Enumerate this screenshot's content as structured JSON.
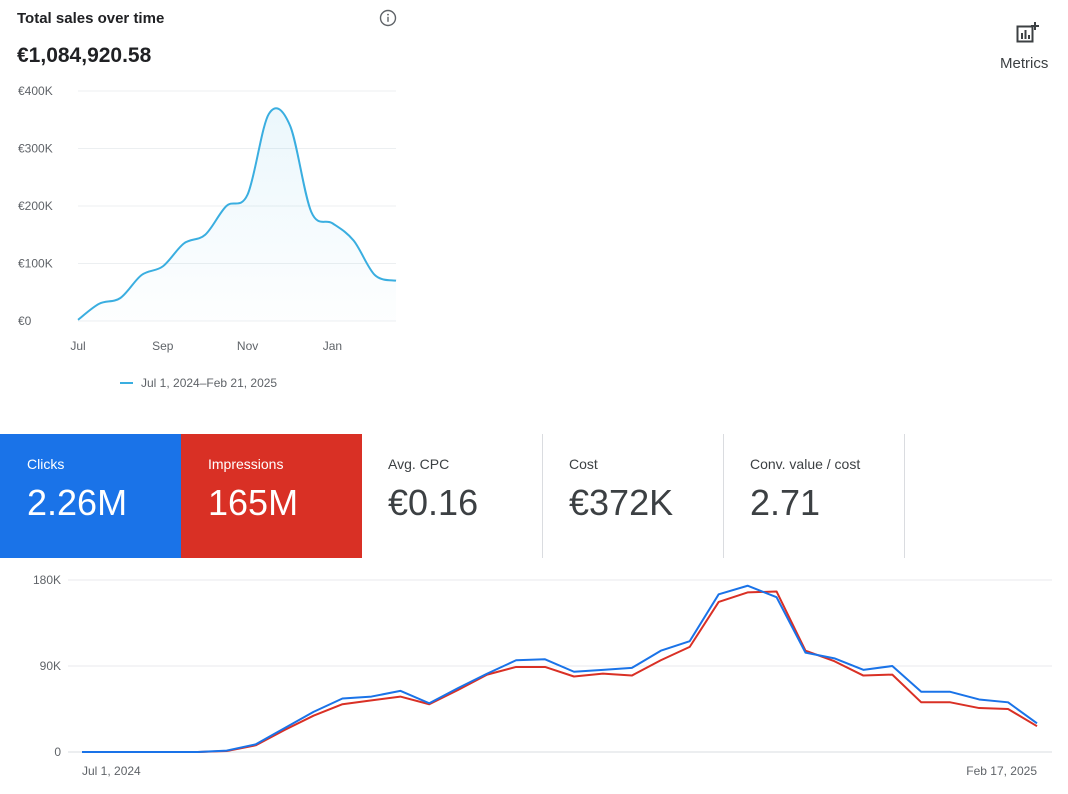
{
  "sales_card": {
    "title": "Total sales over time",
    "info_icon": "info-icon",
    "total": "€1,084,920.58",
    "legend": "Jul 1, 2024–Feb 21, 2025",
    "line_color": "#3aaee0"
  },
  "metrics": [
    {
      "label": "Clicks",
      "value": "2.26M",
      "color": "#1a73e8"
    },
    {
      "label": "Impressions",
      "value": "165M",
      "color": "#d93025"
    },
    {
      "label": "Avg. CPC",
      "value": "€0.16"
    },
    {
      "label": "Cost",
      "value": "€372K"
    },
    {
      "label": "Conv. value / cost",
      "value": "2.71"
    }
  ],
  "metrics_button": {
    "label": "Metrics",
    "icon": "metrics-chart-add-icon"
  },
  "chart_data": [
    {
      "type": "area",
      "title": "Total sales over time",
      "x_tick_labels": [
        "Jul",
        "Sep",
        "Nov",
        "Jan"
      ],
      "y_tick_labels": [
        "€0",
        "€100K",
        "€200K",
        "€300K",
        "€400K"
      ],
      "y_ticks": [
        0,
        100000,
        200000,
        300000,
        400000
      ],
      "ylim": [
        0,
        400000
      ],
      "x_months": [
        0,
        0.5,
        1,
        1.5,
        2,
        2.5,
        3,
        3.5,
        4,
        4.5,
        5,
        5.5,
        6,
        6.5,
        7,
        7.5
      ],
      "values": [
        2000,
        30000,
        40000,
        80000,
        95000,
        135000,
        150000,
        200000,
        220000,
        360000,
        340000,
        190000,
        170000,
        140000,
        80000,
        70000
      ],
      "legend": "Jul 1, 2024–Feb 21, 2025"
    },
    {
      "type": "line",
      "x_labels": [
        "Jul 1, 2024",
        "Feb 17, 2025"
      ],
      "y_tick_labels_left": [
        "0",
        "90K",
        "180K"
      ],
      "ylim": [
        0,
        180000
      ],
      "series": [
        {
          "name": "Clicks",
          "color": "#1a73e8",
          "values": [
            0,
            0,
            0,
            0,
            0,
            1500,
            8000,
            25000,
            42000,
            56000,
            58000,
            64000,
            51000,
            67000,
            82000,
            96000,
            97000,
            84000,
            86000,
            88000,
            106000,
            116000,
            165000,
            174000,
            162000,
            104000,
            98000,
            86000,
            90000,
            63000,
            63000,
            55000,
            52000,
            30000
          ]
        },
        {
          "name": "Impressions",
          "color": "#d93025",
          "values": [
            0,
            0,
            0,
            0,
            0,
            1000,
            7000,
            23000,
            38000,
            50000,
            54000,
            58000,
            50000,
            65000,
            81000,
            89000,
            89000,
            79000,
            82000,
            80000,
            96000,
            110000,
            157000,
            167000,
            168000,
            106000,
            95000,
            80000,
            81000,
            52000,
            52000,
            46000,
            45000,
            27000
          ]
        }
      ]
    }
  ]
}
